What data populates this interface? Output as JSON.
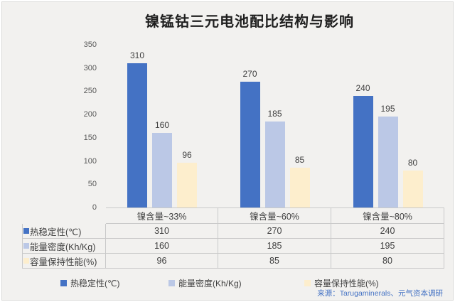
{
  "title": "镍锰钴三元电池配比结构与影响",
  "source": "来源：Tarugaminerals、元气资本调研",
  "colors": {
    "series_thermal": "#4472C4",
    "series_energy": "#BBC8E6",
    "series_capacity": "#FDEECD",
    "background": "#F2F1EF",
    "frame_border": "#DBDBD9",
    "table_border": "#C9C9C9",
    "tick_text": "#595959",
    "label_text": "#404040",
    "source_text": "#4472C4"
  },
  "chart_data": {
    "type": "bar",
    "title": "镍锰钴三元电池配比结构与影响",
    "categories": [
      "镍含量~33%",
      "镍含量~60%",
      "镍含量~80%"
    ],
    "series": [
      {
        "name": "热稳定性(℃)",
        "color": "#4472C4",
        "values": [
          310,
          270,
          240
        ]
      },
      {
        "name": "能量密度(Kh/Kg)",
        "color": "#BBC8E6",
        "values": [
          160,
          185,
          195
        ]
      },
      {
        "name": "容量保持性能(%)",
        "color": "#FDEECD",
        "values": [
          96,
          85,
          80
        ]
      }
    ],
    "ylim": [
      0,
      350
    ],
    "y_ticks": [
      0,
      50,
      100,
      150,
      200,
      250,
      300,
      350
    ],
    "grid": false,
    "data_labels": true,
    "legend_position": "bottom",
    "data_table_shown": true
  }
}
